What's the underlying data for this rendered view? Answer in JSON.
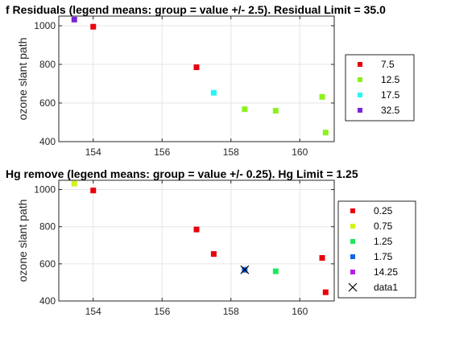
{
  "chart_data": [
    {
      "type": "scatter",
      "title": "f Residuals (legend means: group = value +/- 2.5). Residual Limit = 35.0",
      "xlabel": "",
      "ylabel": "ozone slant path",
      "xlim": [
        153,
        161
      ],
      "ylim": [
        400,
        1050
      ],
      "xticks": [
        154,
        156,
        158,
        160
      ],
      "yticks": [
        400,
        600,
        800,
        1000
      ],
      "grid": true,
      "legend_position": "right",
      "series": [
        {
          "name": "7.5",
          "color": "#e8000b",
          "marker": "square",
          "points": [
            [
              154.0,
              995
            ],
            [
              157.0,
              785
            ]
          ]
        },
        {
          "name": "12.5",
          "color": "#8cf21e",
          "marker": "square",
          "points": [
            [
              158.4,
              568
            ],
            [
              159.3,
              560
            ],
            [
              160.65,
              632
            ],
            [
              160.75,
              447
            ]
          ]
        },
        {
          "name": "17.5",
          "color": "#28f5f5",
          "marker": "square",
          "points": [
            [
              157.5,
              653
            ]
          ]
        },
        {
          "name": "32.5",
          "color": "#7a24d8",
          "marker": "square",
          "points": [
            [
              153.45,
              1032
            ]
          ]
        }
      ]
    },
    {
      "type": "scatter",
      "title": "Hg remove (legend means: group = value +/- 0.25). Hg Limit = 1.25",
      "xlabel": "",
      "ylabel": "ozone slant path",
      "xlim": [
        153,
        161
      ],
      "ylim": [
        400,
        1050
      ],
      "xticks": [
        154,
        156,
        158,
        160
      ],
      "yticks": [
        400,
        600,
        800,
        1000
      ],
      "grid": true,
      "legend_position": "right",
      "series": [
        {
          "name": "0.25",
          "color": "#e8000b",
          "marker": "square",
          "points": [
            [
              154.0,
              995
            ],
            [
              157.0,
              785
            ],
            [
              157.5,
              653
            ],
            [
              160.65,
              632
            ],
            [
              160.75,
              447
            ]
          ]
        },
        {
          "name": "0.75",
          "color": "#d2f21e",
          "marker": "square",
          "points": [
            [
              153.45,
              1032
            ]
          ]
        },
        {
          "name": "1.25",
          "color": "#1ee85a",
          "marker": "square",
          "points": [
            [
              159.3,
              560
            ]
          ]
        },
        {
          "name": "1.75",
          "color": "#1464e6",
          "marker": "square",
          "points": [
            [
              158.4,
              568
            ]
          ]
        },
        {
          "name": "14.25",
          "color": "#b41ee6",
          "marker": "square",
          "points": []
        },
        {
          "name": "data1",
          "color": "#000000",
          "marker": "x",
          "points": [
            [
              158.4,
              568
            ]
          ]
        }
      ]
    }
  ]
}
